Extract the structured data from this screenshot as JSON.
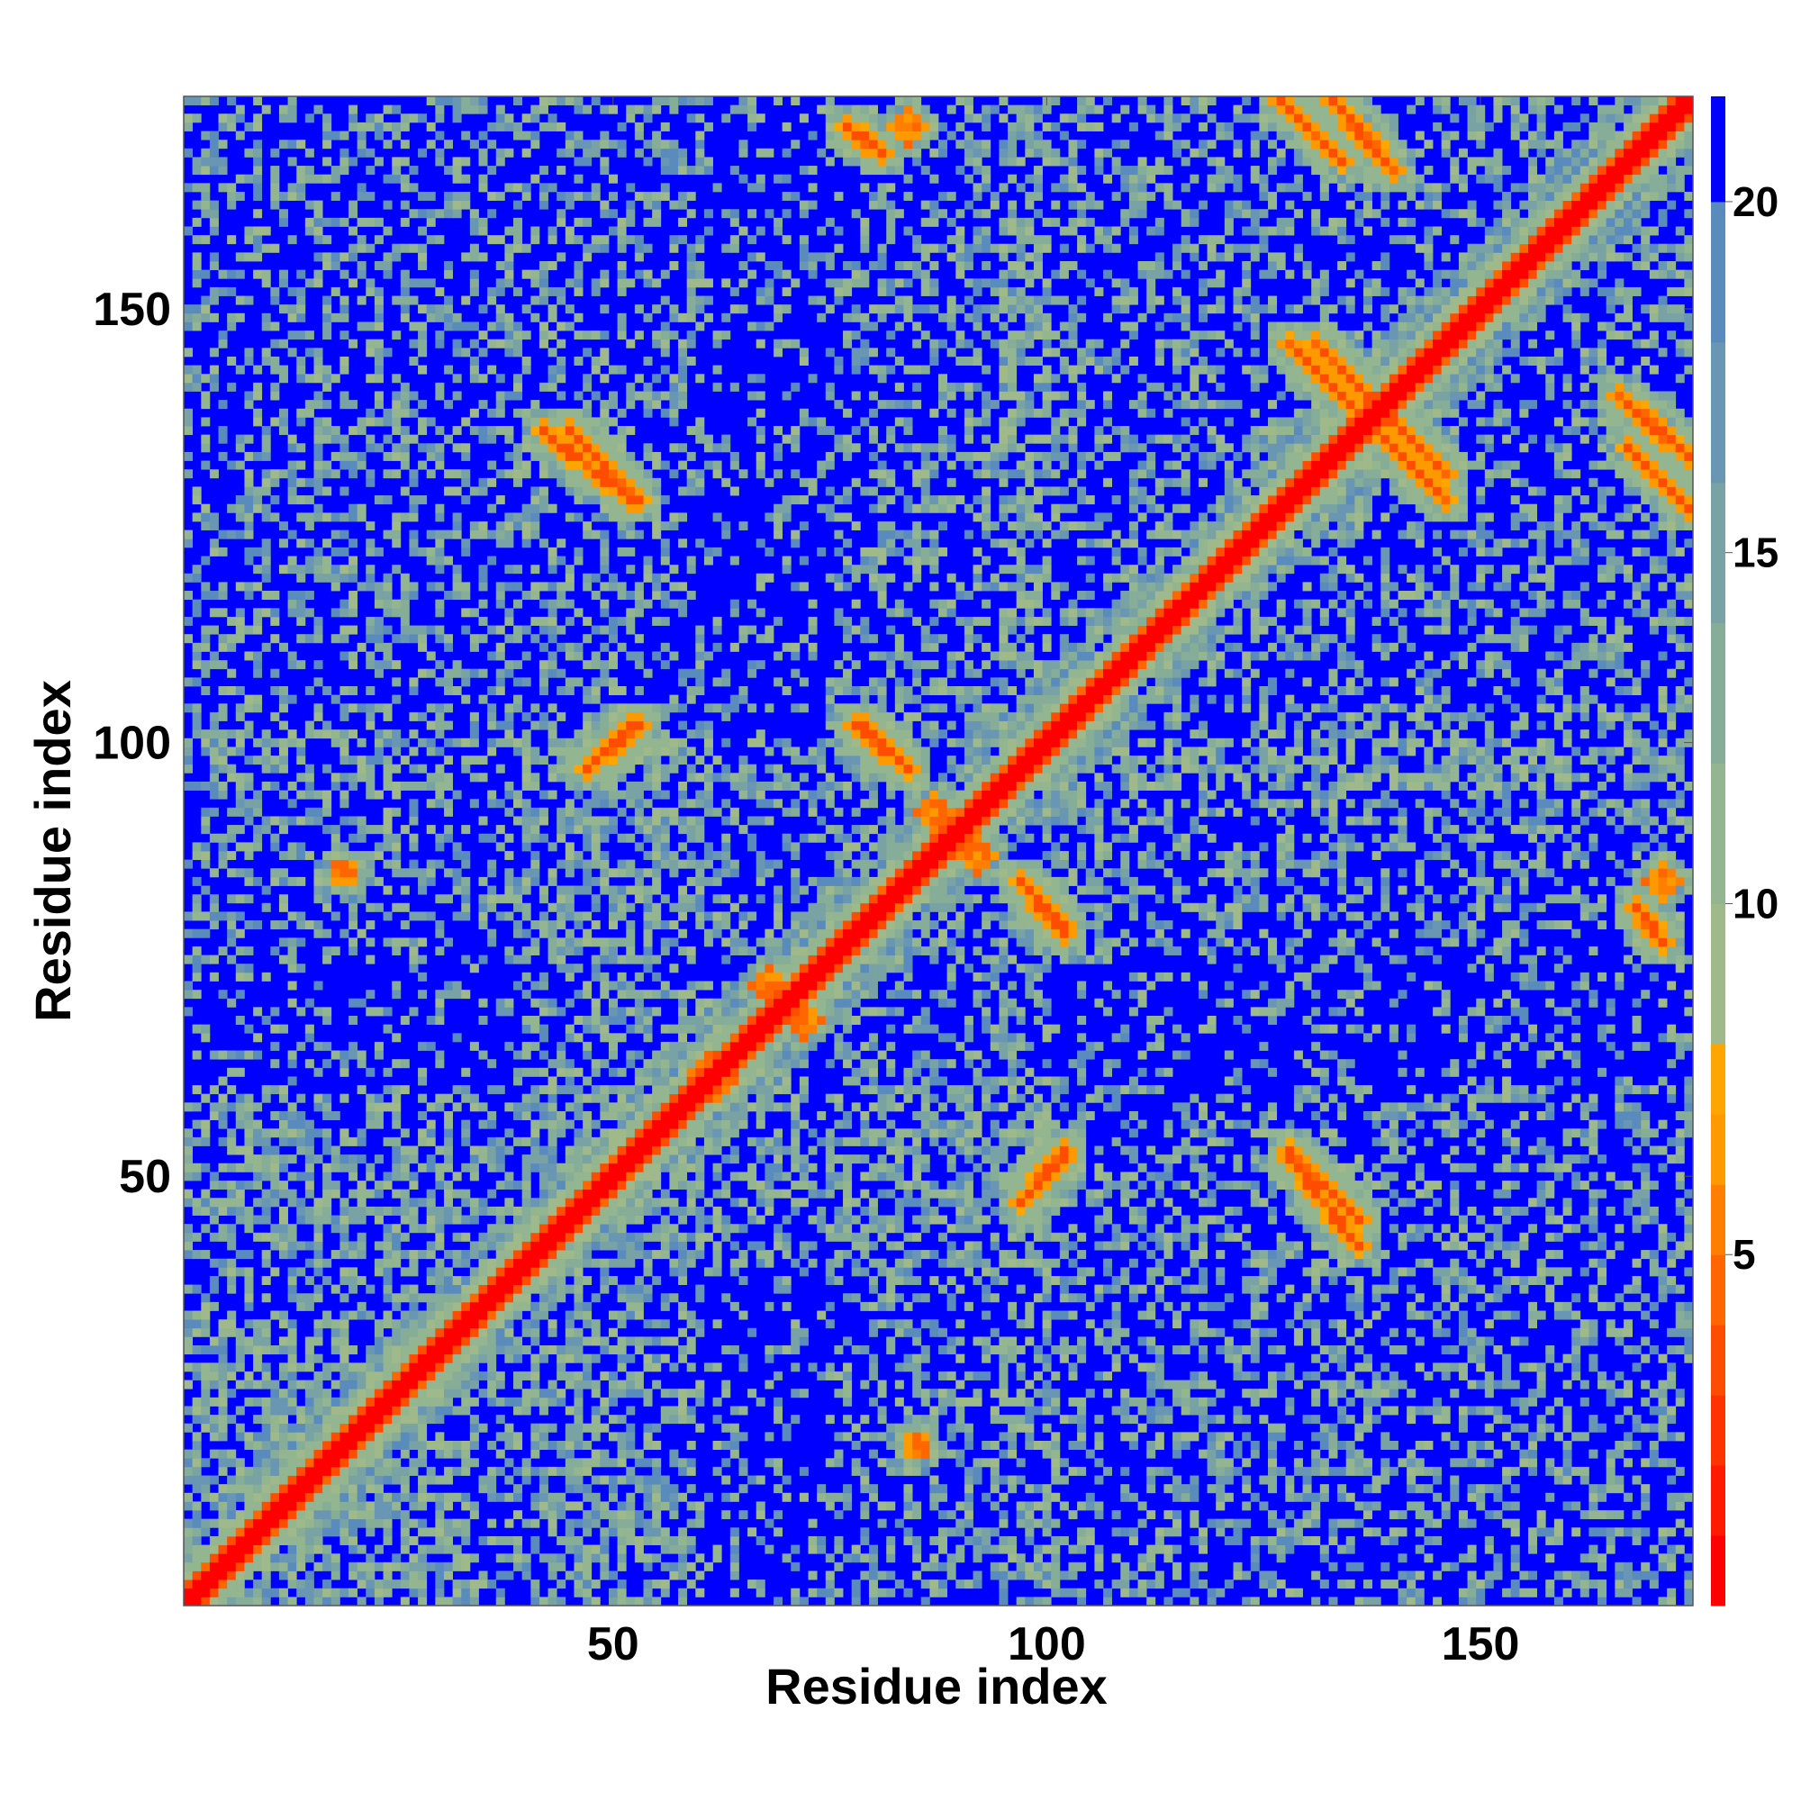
{
  "chart_data": {
    "type": "heatmap",
    "title": "",
    "xlabel": "Residue index",
    "ylabel": "Residue index",
    "n_residues": 174,
    "xlim": [
      1,
      174
    ],
    "ylim": [
      1,
      174
    ],
    "x_ticks": [
      50,
      100,
      150
    ],
    "y_ticks": [
      50,
      100,
      150
    ],
    "colorbar": {
      "range": [
        0,
        21.5
      ],
      "ticks": [
        5,
        10,
        15,
        20
      ],
      "levels": [
        {
          "max": 1,
          "color": "#ff0000"
        },
        {
          "max": 2,
          "color": "#ff1a00"
        },
        {
          "max": 3,
          "color": "#ff3300"
        },
        {
          "max": 4,
          "color": "#ff4d00"
        },
        {
          "max": 5,
          "color": "#ff6600"
        },
        {
          "max": 6,
          "color": "#ff7f00"
        },
        {
          "max": 7,
          "color": "#ff9900"
        },
        {
          "max": 8,
          "color": "#ffa500"
        },
        {
          "max": 10,
          "color": "#9fb98a"
        },
        {
          "max": 12,
          "color": "#93b590"
        },
        {
          "max": 14,
          "color": "#86ad98"
        },
        {
          "max": 16,
          "color": "#78a2a4"
        },
        {
          "max": 18,
          "color": "#6996b2"
        },
        {
          "max": 20,
          "color": "#5a8bbd"
        },
        {
          "max": 21.5,
          "color": "#0000ff"
        }
      ]
    },
    "background_color": "#0000ff",
    "features": [
      {
        "kind": "diagonal",
        "width": 9
      },
      {
        "kind": "line",
        "from": [
          45,
          136
        ],
        "to": [
          53,
          128
        ]
      },
      {
        "kind": "line",
        "from": [
          77,
          171
        ],
        "to": [
          81,
          168
        ]
      },
      {
        "kind": "line",
        "from": [
          127,
          174
        ],
        "to": [
          134,
          167
        ]
      },
      {
        "kind": "line",
        "from": [
          166,
          140
        ],
        "to": [
          174,
          133
        ]
      },
      {
        "kind": "line",
        "from": [
          137,
          137
        ],
        "to": [
          146,
          128
        ]
      },
      {
        "kind": "line",
        "from": [
          131,
          146
        ],
        "to": [
          137,
          140
        ]
      },
      {
        "kind": "line",
        "from": [
          128,
          52
        ],
        "to": [
          136,
          42
        ]
      },
      {
        "kind": "line",
        "from": [
          97,
          84
        ],
        "to": [
          102,
          79
        ]
      },
      {
        "kind": "line",
        "from": [
          78,
          102
        ],
        "to": [
          83,
          98
        ]
      },
      {
        "kind": "line",
        "from": [
          48,
          98
        ],
        "to": [
          52,
          102
        ]
      },
      {
        "kind": "line",
        "from": [
          97,
          47
        ],
        "to": [
          102,
          53
        ]
      },
      {
        "kind": "blob",
        "center": [
          171,
          84
        ],
        "r": 2
      },
      {
        "kind": "blob",
        "center": [
          19,
          85
        ],
        "r": 1.5
      },
      {
        "kind": "blob",
        "center": [
          87,
          92
        ],
        "r": 2
      },
      {
        "kind": "blob",
        "center": [
          72,
          68
        ],
        "r": 2
      },
      {
        "kind": "blob",
        "center": [
          62,
          61
        ],
        "r": 2
      },
      {
        "kind": "blob",
        "center": [
          116,
          116
        ],
        "r": 2
      },
      {
        "kind": "blob",
        "center": [
          122,
          122
        ],
        "r": 2
      },
      {
        "kind": "line",
        "from": [
          3,
          3
        ],
        "to": [
          42,
          42
        ],
        "offset": 2
      },
      {
        "kind": "region",
        "x": [
          1,
          60
        ],
        "y": [
          1,
          55
        ]
      },
      {
        "kind": "region",
        "x": [
          40,
          100
        ],
        "y": [
          45,
          100
        ]
      },
      {
        "kind": "region",
        "x": [
          95,
          174
        ],
        "y": [
          95,
          174
        ]
      },
      {
        "kind": "region",
        "x": [
          1,
          55
        ],
        "y": [
          1,
          30
        ]
      },
      {
        "kind": "region",
        "x": [
          1,
          60
        ],
        "y": [
          100,
          174
        ]
      },
      {
        "kind": "region",
        "x": [
          75,
          100
        ],
        "y": [
          100,
          174
        ]
      },
      {
        "kind": "region",
        "x": [
          1,
          60
        ],
        "y": [
          45,
          100
        ]
      },
      {
        "kind": "region",
        "x": [
          95,
          174
        ],
        "y": [
          1,
          100
        ]
      },
      {
        "kind": "region",
        "x": [
          75,
          100
        ],
        "y": [
          1,
          55
        ]
      }
    ]
  }
}
